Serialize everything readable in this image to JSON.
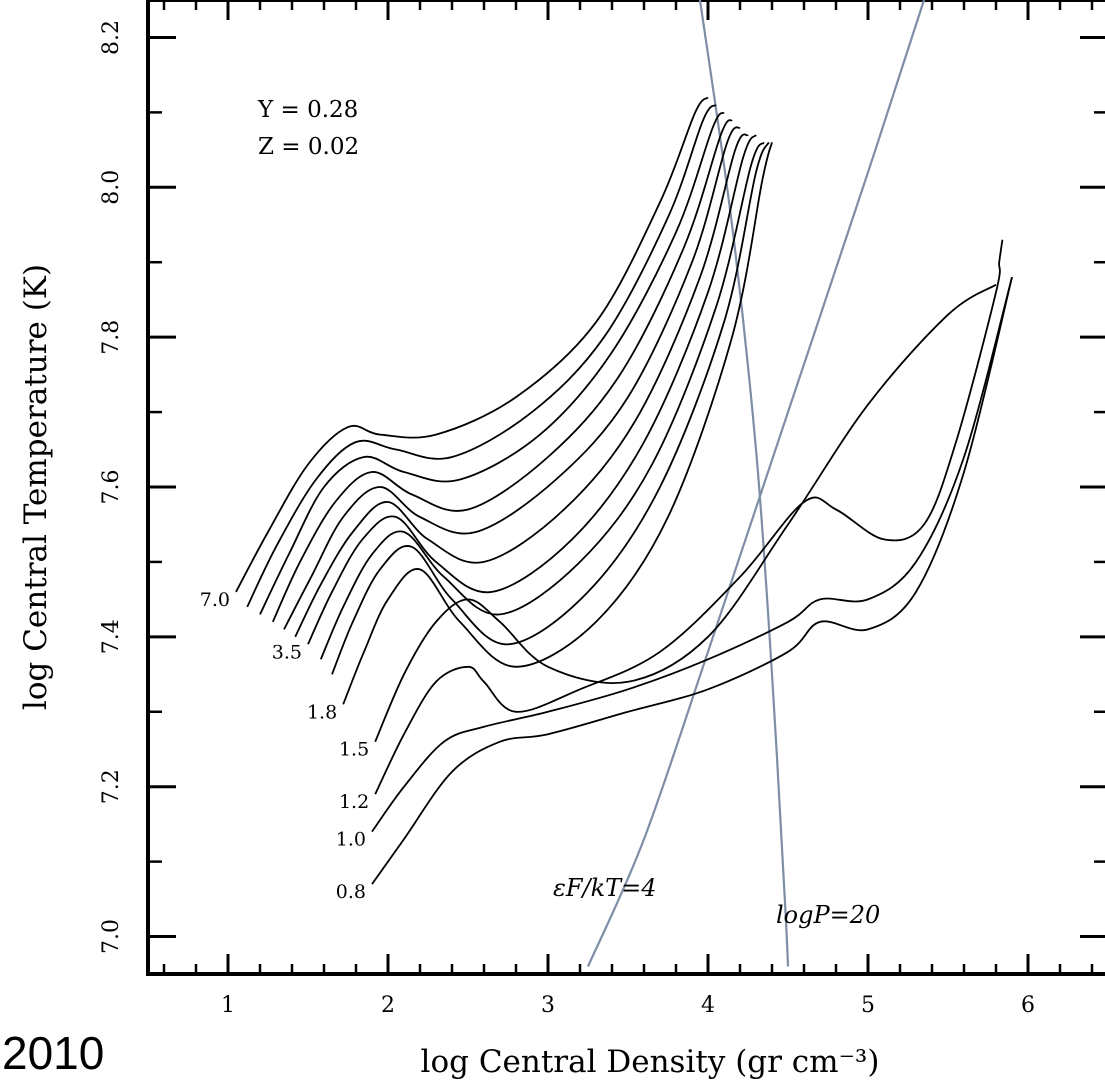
{
  "year_label": "2010",
  "chart_data": {
    "type": "line",
    "xlabel": "log Central Density (gr cm⁻³)",
    "ylabel": "log Central Temperature (K)",
    "xlim": [
      0.5,
      6.5
    ],
    "ylim": [
      6.95,
      8.25
    ],
    "x_ticks": [
      "1",
      "2",
      "3",
      "4",
      "5",
      "6"
    ],
    "y_ticks": [
      "7.0",
      "7.2",
      "7.4",
      "7.6",
      "7.8",
      "8.0",
      "8.2"
    ],
    "grid": false,
    "legend": "none",
    "composition": [
      "Y = 0.28",
      "Z = 0.02"
    ],
    "annotations": [
      "εF/kT=4",
      "logP=20"
    ],
    "mass_labels": [
      "7.0",
      "3.5",
      "1.8",
      "1.5",
      "1.2",
      "1.0",
      "0.8"
    ],
    "series": [
      {
        "mass_label": "7.0",
        "x": [
          1.05,
          1.25,
          1.5,
          1.75,
          1.95,
          2.3,
          2.8,
          3.3,
          3.7,
          3.92,
          4.0
        ],
        "y": [
          7.46,
          7.54,
          7.63,
          7.68,
          7.67,
          7.67,
          7.72,
          7.82,
          7.98,
          8.1,
          8.12
        ]
      },
      {
        "x": [
          1.12,
          1.3,
          1.55,
          1.8,
          2.05,
          2.4,
          2.9,
          3.35,
          3.75,
          3.97,
          4.05
        ],
        "y": [
          7.44,
          7.52,
          7.61,
          7.66,
          7.65,
          7.64,
          7.7,
          7.8,
          7.96,
          8.09,
          8.11
        ]
      },
      {
        "x": [
          1.2,
          1.38,
          1.6,
          1.85,
          2.1,
          2.45,
          2.95,
          3.4,
          3.8,
          4.03,
          4.1
        ],
        "y": [
          7.43,
          7.51,
          7.6,
          7.64,
          7.62,
          7.61,
          7.67,
          7.78,
          7.94,
          8.08,
          8.1
        ]
      },
      {
        "x": [
          1.28,
          1.45,
          1.67,
          1.9,
          2.15,
          2.5,
          3.0,
          3.45,
          3.85,
          4.08,
          4.15
        ],
        "y": [
          7.42,
          7.5,
          7.58,
          7.62,
          7.59,
          7.57,
          7.64,
          7.75,
          7.92,
          8.07,
          8.09
        ]
      },
      {
        "x": [
          1.35,
          1.52,
          1.72,
          1.95,
          2.2,
          2.55,
          3.05,
          3.5,
          3.9,
          4.12,
          4.2
        ],
        "y": [
          7.41,
          7.48,
          7.56,
          7.6,
          7.56,
          7.54,
          7.61,
          7.72,
          7.9,
          8.06,
          8.08
        ]
      },
      {
        "x": [
          1.42,
          1.58,
          1.78,
          2.0,
          2.25,
          2.6,
          3.1,
          3.55,
          3.95,
          4.17,
          4.25
        ],
        "y": [
          7.4,
          7.47,
          7.54,
          7.58,
          7.53,
          7.5,
          7.57,
          7.69,
          7.88,
          8.05,
          8.07
        ]
      },
      {
        "mass_label": "3.5",
        "x": [
          1.5,
          1.65,
          1.84,
          2.05,
          2.3,
          2.65,
          3.15,
          3.6,
          4.0,
          4.22,
          4.3
        ],
        "y": [
          7.39,
          7.46,
          7.53,
          7.56,
          7.5,
          7.46,
          7.53,
          7.66,
          7.86,
          8.04,
          8.07
        ]
      },
      {
        "x": [
          1.58,
          1.72,
          1.9,
          2.1,
          2.35,
          2.7,
          3.2,
          3.65,
          4.05,
          4.27,
          4.35
        ],
        "y": [
          7.37,
          7.44,
          7.51,
          7.54,
          7.48,
          7.43,
          7.5,
          7.63,
          7.84,
          8.03,
          8.06
        ]
      },
      {
        "x": [
          1.65,
          1.78,
          1.95,
          2.15,
          2.4,
          2.75,
          3.25,
          3.7,
          4.1,
          4.3,
          4.38
        ],
        "y": [
          7.35,
          7.42,
          7.49,
          7.52,
          7.45,
          7.39,
          7.46,
          7.6,
          7.82,
          8.02,
          8.06
        ]
      },
      {
        "mass_label": "1.8",
        "x": [
          1.72,
          1.85,
          2.0,
          2.2,
          2.45,
          2.8,
          3.3,
          3.75,
          4.15,
          4.34,
          4.4
        ],
        "y": [
          7.31,
          7.38,
          7.45,
          7.49,
          7.42,
          7.36,
          7.42,
          7.56,
          7.8,
          8.01,
          8.06
        ]
      },
      {
        "mass_label": "1.5",
        "x": [
          1.92,
          2.1,
          2.3,
          2.5,
          2.7,
          3.0,
          3.5,
          4.0,
          4.5,
          5.0,
          5.5,
          5.8
        ],
        "y": [
          7.26,
          7.35,
          7.42,
          7.45,
          7.42,
          7.36,
          7.34,
          7.4,
          7.55,
          7.71,
          7.83,
          7.87
        ]
      },
      {
        "mass_label": "1.2",
        "x": [
          1.92,
          2.1,
          2.3,
          2.5,
          2.6,
          2.8,
          3.2,
          3.7,
          4.2,
          4.6,
          4.8,
          5.1,
          5.35,
          5.55,
          5.8,
          5.82,
          5.84
        ],
        "y": [
          7.19,
          7.27,
          7.34,
          7.36,
          7.34,
          7.3,
          7.33,
          7.38,
          7.48,
          7.58,
          7.57,
          7.53,
          7.55,
          7.66,
          7.86,
          7.9,
          7.93
        ]
      },
      {
        "mass_label": "1.0",
        "x": [
          1.9,
          2.1,
          2.35,
          2.6,
          3.0,
          3.5,
          4.0,
          4.5,
          4.7,
          5.0,
          5.3,
          5.6,
          5.9
        ],
        "y": [
          7.14,
          7.2,
          7.26,
          7.28,
          7.3,
          7.33,
          7.37,
          7.42,
          7.45,
          7.45,
          7.5,
          7.64,
          7.88
        ]
      },
      {
        "mass_label": "0.8",
        "x": [
          1.9,
          2.1,
          2.4,
          2.7,
          3.0,
          3.5,
          4.0,
          4.5,
          4.7,
          5.0,
          5.3,
          5.6,
          5.9
        ],
        "y": [
          7.07,
          7.13,
          7.22,
          7.26,
          7.27,
          7.3,
          7.33,
          7.38,
          7.42,
          7.41,
          7.46,
          7.62,
          7.88
        ]
      }
    ],
    "reference_lines": [
      {
        "label": "εF/kT=4",
        "x": [
          3.25,
          3.6,
          4.0,
          4.5,
          5.0,
          5.35
        ],
        "y": [
          6.96,
          7.13,
          7.38,
          7.7,
          8.02,
          8.25
        ]
      },
      {
        "label": "logP=20",
        "x": [
          3.95,
          4.15,
          4.3,
          4.4,
          4.48,
          4.5
        ],
        "y": [
          8.25,
          7.95,
          7.65,
          7.35,
          7.05,
          6.96
        ]
      }
    ]
  }
}
